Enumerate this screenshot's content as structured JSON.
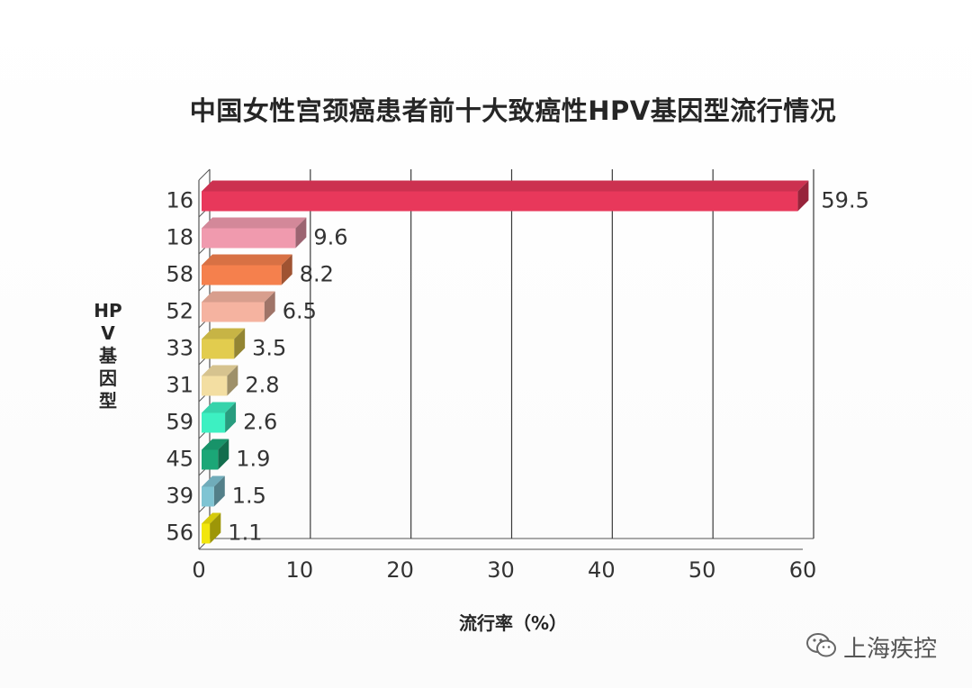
{
  "chart_data": {
    "type": "bar",
    "orientation": "horizontal",
    "title": "中国女性宫颈癌患者前十大致癌性HPV基因型流行情况",
    "xlabel": "流行率（%）",
    "ylabel": "HPV基因型",
    "categories": [
      "16",
      "18",
      "58",
      "52",
      "33",
      "31",
      "59",
      "45",
      "39",
      "56"
    ],
    "values": [
      59.5,
      9.6,
      8.2,
      6.5,
      3.5,
      2.8,
      2.6,
      1.9,
      1.5,
      1.1
    ],
    "value_labels": [
      "59.5",
      "9.6",
      "8.2",
      "6.5",
      "3.5",
      "2.8",
      "2.6",
      "1.9",
      "1.5",
      "1.1"
    ],
    "colors": [
      "#E8385B",
      "#F09AAE",
      "#F5804D",
      "#F5B3A0",
      "#E2CC4E",
      "#F3DEA2",
      "#3DF0C2",
      "#1BA777",
      "#7FC4D3",
      "#F2E60C"
    ],
    "xlim": [
      0,
      60
    ],
    "xticks": [
      "0",
      "10",
      "20",
      "30",
      "40",
      "50",
      "60"
    ],
    "grid": true,
    "style": "3d-bars"
  },
  "watermark": {
    "text": "上海疾控",
    "icon": "wechat-icon"
  }
}
